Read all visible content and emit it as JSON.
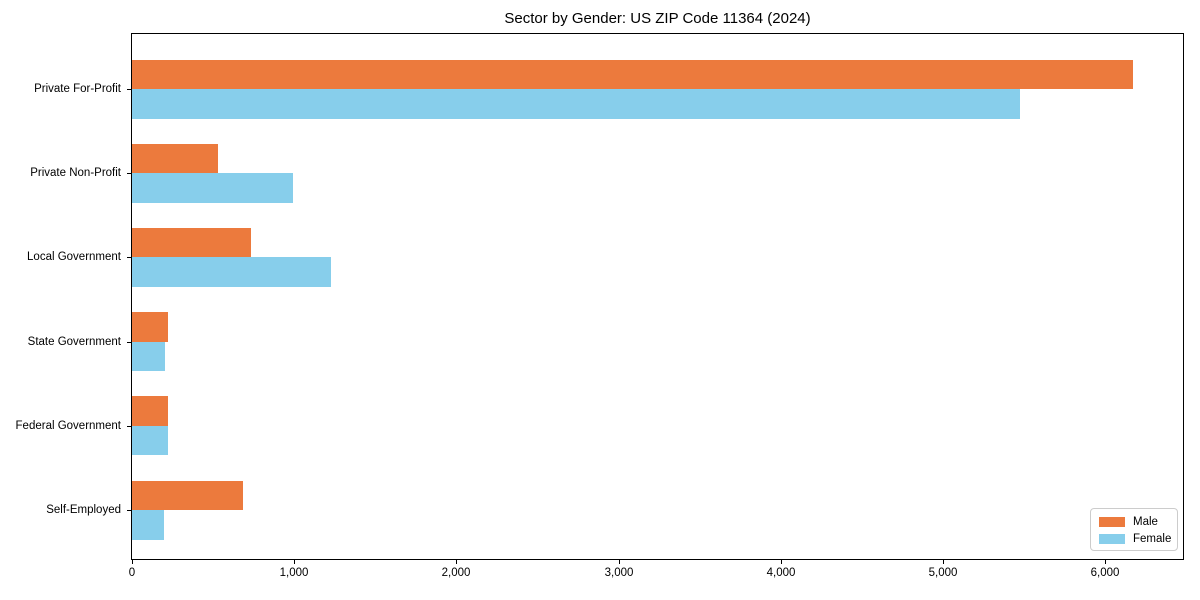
{
  "title": "Sector by Gender: US ZIP Code 11364 (2024)",
  "chart_data": {
    "type": "bar",
    "orientation": "horizontal",
    "title": "Sector by Gender: US ZIP Code 11364 (2024)",
    "categories": [
      "Private For-Profit",
      "Private Non-Profit",
      "Local Government",
      "State Government",
      "Federal Government",
      "Self-Employed"
    ],
    "series": [
      {
        "name": "Male",
        "color": "#ec7a3d",
        "values": [
          6170,
          530,
          735,
          225,
          220,
          685
        ]
      },
      {
        "name": "Female",
        "color": "#87ceeb",
        "values": [
          5475,
          995,
          1230,
          205,
          220,
          200
        ]
      }
    ],
    "xlabel": "",
    "ylabel": "",
    "xlim": [
      0,
      6480
    ],
    "xticks": [
      0,
      1000,
      2000,
      3000,
      4000,
      5000,
      6000
    ],
    "xtick_labels": [
      "0",
      "1,000",
      "2,000",
      "3,000",
      "4,000",
      "5,000",
      "6,000"
    ],
    "grid": false,
    "legend": {
      "position": "lower right"
    }
  },
  "colors": {
    "male": "#ec7a3d",
    "female": "#87ceeb",
    "axis": "#000000",
    "legend_border": "#cccccc"
  }
}
